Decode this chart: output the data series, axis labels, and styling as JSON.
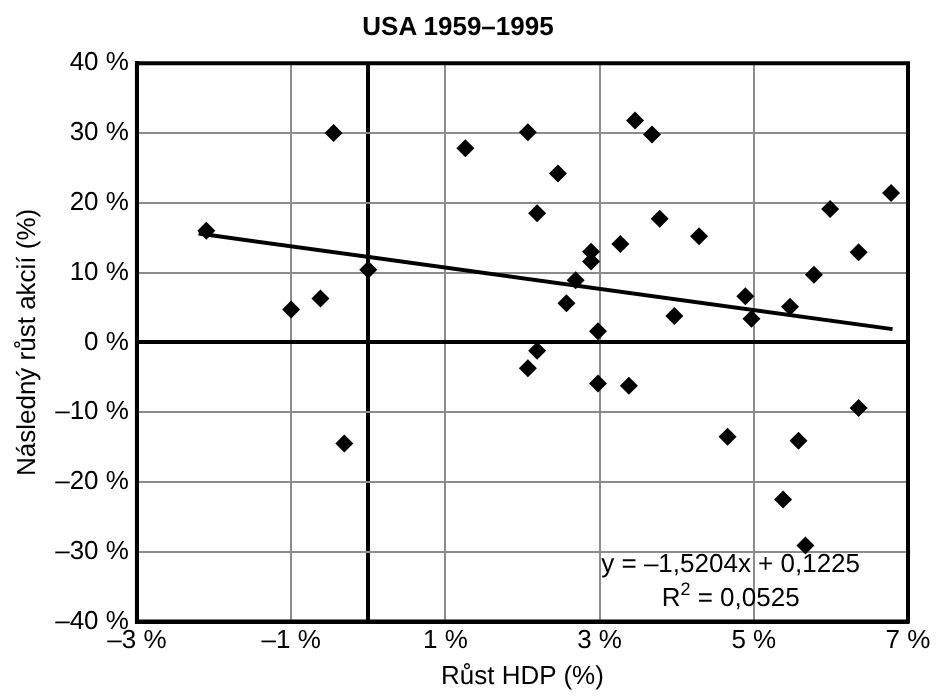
{
  "chart_data": {
    "type": "scatter",
    "title": "USA 1959–1995",
    "xlabel": "Růst HDP (%)",
    "ylabel": "Následný růst akcií (%)",
    "xlim": [
      -3,
      7
    ],
    "xticks": [
      {
        "value": -3,
        "label": "–3 %"
      },
      {
        "value": -1,
        "label": "–1 %"
      },
      {
        "value": 0,
        "label": null
      },
      {
        "value": 1,
        "label": "1 %"
      },
      {
        "value": 3,
        "label": "3 %"
      },
      {
        "value": 5,
        "label": "5 %"
      },
      {
        "value": 7,
        "label": "7 %"
      }
    ],
    "ylim": [
      -40,
      40
    ],
    "yticks": [
      {
        "value": -40,
        "label": "–40 %"
      },
      {
        "value": -30,
        "label": "–30 %"
      },
      {
        "value": -20,
        "label": "–20 %"
      },
      {
        "value": -10,
        "label": "–10 %"
      },
      {
        "value": 0,
        "label": "0 %"
      },
      {
        "value": 10,
        "label": "10 %"
      },
      {
        "value": 20,
        "label": "20 %"
      },
      {
        "value": 30,
        "label": "30 %"
      },
      {
        "value": 40,
        "label": "40 %"
      }
    ],
    "grid": true,
    "legend": false,
    "marker": "diamond",
    "annotations": [
      "y = –1,5204x + 0,1225",
      "R$^{2}$ = 0,0525"
    ],
    "series": [
      {
        "color": "#000000",
        "x": [
          -2.1,
          -0.45,
          -1.0,
          -0.62,
          0.0,
          -0.31,
          1.26,
          2.07,
          2.19,
          2.19,
          2.07,
          2.46,
          3.46,
          3.68,
          3.78,
          3.27,
          4.29,
          2.89,
          2.89,
          2.69,
          2.57,
          2.98,
          2.98,
          3.38,
          3.97,
          4.89,
          4.97,
          5.47,
          5.78,
          5.99,
          6.36,
          6.78,
          4.66,
          5.58,
          6.36,
          5.38,
          5.67
        ],
        "values": [
          16,
          30,
          4.7,
          6.3,
          10.4,
          -14.5,
          27.8,
          30.1,
          18.5,
          -1.2,
          -3.7,
          24.2,
          31.8,
          29.8,
          17.7,
          14.1,
          15.2,
          13,
          11.6,
          8.9,
          5.6,
          1.6,
          -5.9,
          -6.2,
          3.8,
          6.6,
          3.4,
          5.1,
          9.7,
          19.1,
          12.9,
          21.4,
          -13.5,
          -14.1,
          -9.4,
          -22.5,
          -29.1
        ]
      },
      {
        "type": "line",
        "color": "#000000",
        "marker": "none",
        "x": [
          -2.2,
          6.8
        ],
        "values": [
          15.6,
          1.9
        ]
      }
    ]
  }
}
